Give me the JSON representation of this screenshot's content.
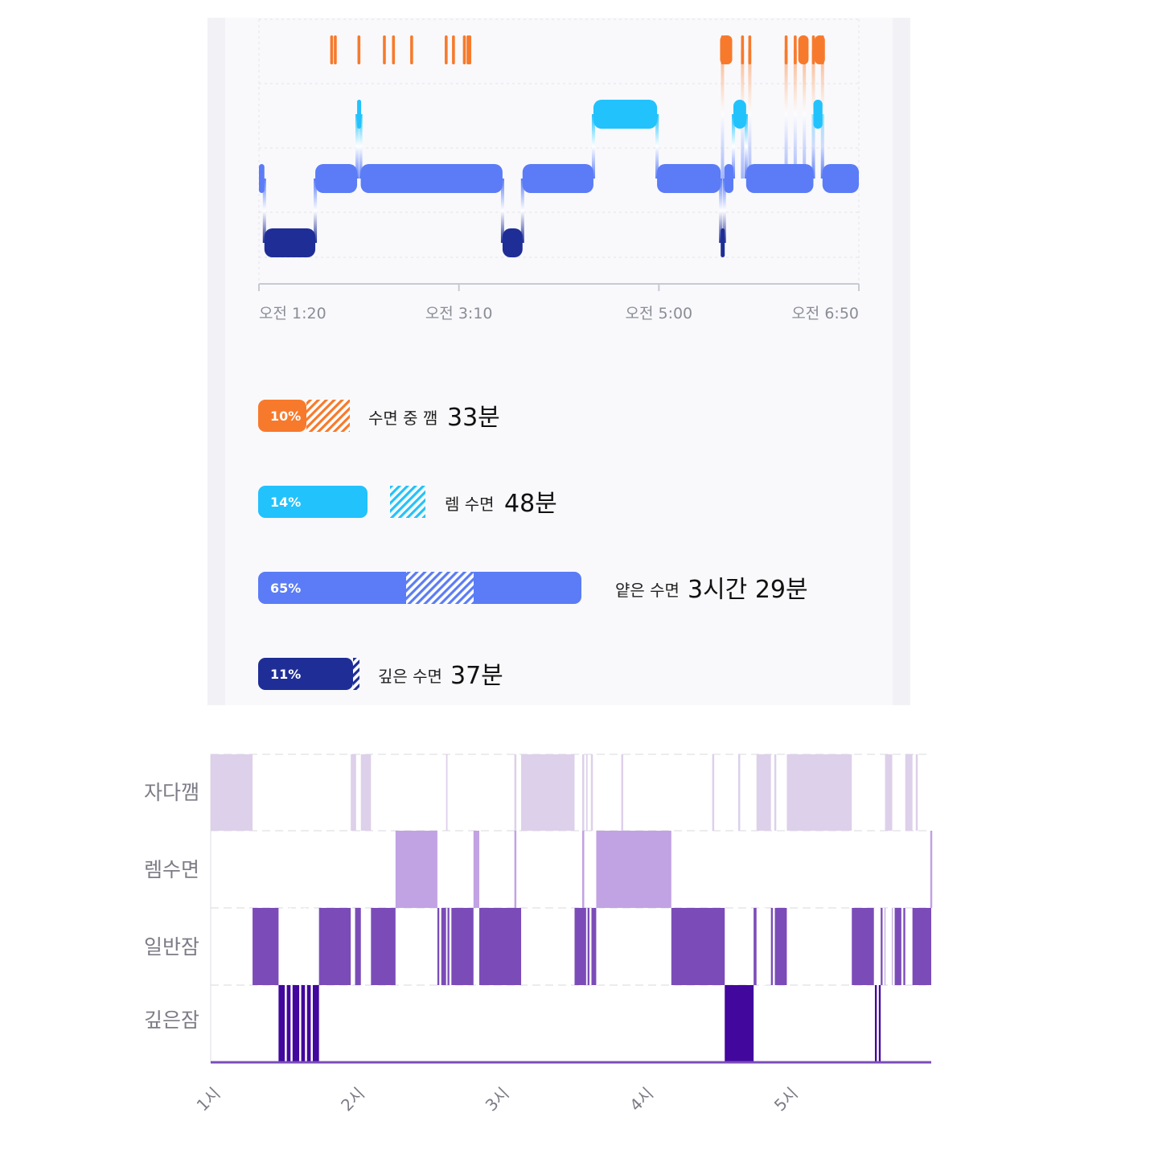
{
  "top": {
    "colors": {
      "awake": "#f77a2c",
      "rem": "#22c2fc",
      "light": "#5b7cf6",
      "deep": "#1f2e96"
    },
    "time_labels": [
      "오전 1:20",
      "오전 3:10",
      "오전 5:00",
      "오전 6:50"
    ],
    "legend": [
      {
        "key": "awake",
        "pct": "10%",
        "name": "수면 중 깸",
        "value": "33분"
      },
      {
        "key": "rem",
        "pct": "14%",
        "name": "렘 수면",
        "value": "48분"
      },
      {
        "key": "light",
        "pct": "65%",
        "name": "얕은 수면",
        "value": "3시간 29분"
      },
      {
        "key": "deep",
        "pct": "11%",
        "name": "깊은 수면",
        "value": "37분"
      }
    ]
  },
  "bottom": {
    "colors": {
      "awake": "#ddd0ea",
      "rem": "#c1a2e3",
      "light": "#7b4cb8",
      "deep": "#42079d"
    },
    "row_labels": [
      "자다깸",
      "렘수면",
      "일반잠",
      "깊은잠"
    ],
    "hour_labels": [
      "1시",
      "2시",
      "3시",
      "4시",
      "5시"
    ]
  },
  "chart_data": [
    {
      "type": "hypnogram",
      "x_unit": "time",
      "x_range": [
        "1:20",
        "6:50"
      ],
      "x_ticks": [
        "오전 1:20",
        "오전 3:10",
        "오전 5:00",
        "오전 6:50"
      ],
      "stages": [
        "awake",
        "rem",
        "light",
        "deep"
      ],
      "segments": [
        {
          "stage": "light",
          "start": "1:20",
          "end": "1:23"
        },
        {
          "stage": "deep",
          "start": "1:23",
          "end": "1:51"
        },
        {
          "stage": "light",
          "start": "1:51",
          "end": "2:14"
        },
        {
          "stage": "rem",
          "start": "2:14",
          "end": "2:16"
        },
        {
          "stage": "light",
          "start": "2:16",
          "end": "3:34"
        },
        {
          "stage": "deep",
          "start": "3:34",
          "end": "3:45"
        },
        {
          "stage": "light",
          "start": "3:45",
          "end": "4:24"
        },
        {
          "stage": "rem",
          "start": "4:24",
          "end": "4:59"
        },
        {
          "stage": "light",
          "start": "4:59",
          "end": "5:34"
        },
        {
          "stage": "deep",
          "start": "5:34",
          "end": "5:36"
        },
        {
          "stage": "light",
          "start": "5:36",
          "end": "5:41"
        },
        {
          "stage": "rem",
          "start": "5:41",
          "end": "5:48"
        },
        {
          "stage": "light",
          "start": "5:48",
          "end": "6:25"
        },
        {
          "stage": "rem",
          "start": "6:25",
          "end": "6:30"
        },
        {
          "stage": "light",
          "start": "6:30",
          "end": "6:50"
        }
      ],
      "awake_marks": [
        "2:00",
        "2:02",
        "2:15",
        "2:29",
        "2:34",
        "2:44",
        "3:03",
        "3:07",
        "3:13",
        "3:15",
        "3:16",
        "5:35",
        "5:46",
        "5:50",
        "6:10",
        "6:15",
        "6:20",
        "6:25",
        "6:30"
      ],
      "legend": [
        {
          "stage": "awake",
          "percent": 10,
          "duration": "33분"
        },
        {
          "stage": "rem",
          "percent": 14,
          "duration": "48분"
        },
        {
          "stage": "light",
          "percent": 65,
          "duration": "3시간 29분"
        },
        {
          "stage": "deep",
          "percent": 11,
          "duration": "37분"
        }
      ]
    },
    {
      "type": "hypnogram",
      "x_unit": "hour",
      "x_range": [
        1.0,
        5.99
      ],
      "x_ticks": [
        "1시",
        "2시",
        "3시",
        "4시",
        "5시"
      ],
      "rows": [
        "자다깸",
        "렘수면",
        "일반잠",
        "깊은잠"
      ],
      "segments": [
        {
          "stage": "awake",
          "start": 1.0,
          "end": 1.29
        },
        {
          "stage": "light",
          "start": 1.29,
          "end": 1.47
        },
        {
          "stage": "deep",
          "start": 1.47,
          "end": 1.75
        },
        {
          "stage": "light",
          "start": 1.75,
          "end": 1.97
        },
        {
          "stage": "awake",
          "start": 1.97,
          "end": 2.0
        },
        {
          "stage": "light",
          "start": 2.0,
          "end": 2.04
        },
        {
          "stage": "awake",
          "start": 2.04,
          "end": 2.11
        },
        {
          "stage": "light",
          "start": 2.11,
          "end": 2.28
        },
        {
          "stage": "rem",
          "start": 2.28,
          "end": 2.57
        },
        {
          "stage": "light",
          "start": 2.57,
          "end": 2.63
        },
        {
          "stage": "awake",
          "start": 2.63,
          "end": 2.64
        },
        {
          "stage": "light",
          "start": 2.64,
          "end": 2.82
        },
        {
          "stage": "rem",
          "start": 2.82,
          "end": 2.86
        },
        {
          "stage": "light",
          "start": 2.86,
          "end": 3.15
        },
        {
          "stage": "awake",
          "start": 3.15,
          "end": 3.52
        },
        {
          "stage": "light",
          "start": 3.52,
          "end": 3.6
        },
        {
          "stage": "awake",
          "start": 3.6,
          "end": 3.61
        },
        {
          "stage": "light",
          "start": 3.61,
          "end": 3.67
        },
        {
          "stage": "rem",
          "start": 3.67,
          "end": 4.19
        },
        {
          "stage": "light",
          "start": 4.19,
          "end": 4.56
        },
        {
          "stage": "deep",
          "start": 4.56,
          "end": 4.76
        },
        {
          "stage": "light",
          "start": 4.76,
          "end": 4.78
        },
        {
          "stage": "awake",
          "start": 4.78,
          "end": 4.88
        },
        {
          "stage": "light",
          "start": 4.88,
          "end": 4.99
        },
        {
          "stage": "awake",
          "start": 4.99,
          "end": 5.44
        },
        {
          "stage": "light",
          "start": 5.44,
          "end": 5.6
        },
        {
          "stage": "deep",
          "start": 5.6,
          "end": 5.64
        },
        {
          "stage": "light",
          "start": 5.64,
          "end": 5.67
        },
        {
          "stage": "awake",
          "start": 5.67,
          "end": 5.72
        },
        {
          "stage": "light",
          "start": 5.72,
          "end": 5.81
        },
        {
          "stage": "awake",
          "start": 5.81,
          "end": 5.86
        },
        {
          "stage": "light",
          "start": 5.86,
          "end": 5.99
        }
      ],
      "thin_lines": [
        {
          "stage": "awake",
          "at": [
            2.0,
            2.06,
            3.11,
            3.58,
            3.64,
            3.85,
            4.48,
            4.66,
            4.91,
            5.01,
            5.83,
            5.89
          ]
        },
        {
          "stage": "rem",
          "at": [
            3.11,
            3.58,
            5.99
          ]
        },
        {
          "stage": "light",
          "at": [
            1.55,
            1.6,
            1.65,
            1.71,
            2.59,
            2.66,
            3.63,
            3.68,
            4.84,
            4.9,
            5.6,
            5.66,
            5.73,
            5.79
          ]
        },
        {
          "stage": "deep",
          "at": [
            1.52,
            1.56,
            1.62,
            1.66,
            1.7,
            5.62
          ]
        }
      ]
    }
  ]
}
